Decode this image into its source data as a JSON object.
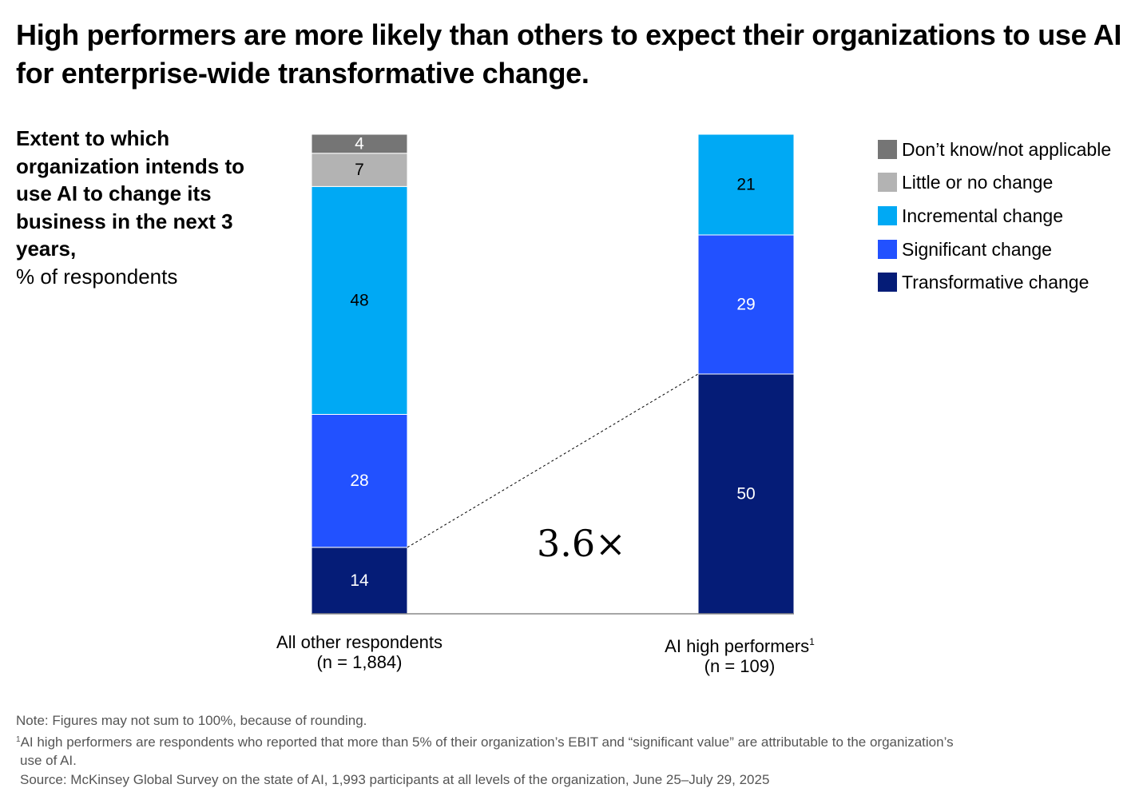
{
  "title": "High performers are more likely than others to expect their organizations to use AI for enterprise-wide transformative change.",
  "subtitle_bold": "Extent to which organization intends to use AI to change its business in the next 3 years,",
  "subtitle_unit": "% of respondents",
  "legend": [
    {
      "label": "Don’t know/not applicable",
      "color": "#757575"
    },
    {
      "label": "Little or no change",
      "color": "#B3B3B3"
    },
    {
      "label": "Incremental change",
      "color": "#00A9F4"
    },
    {
      "label": "Significant change",
      "color": "#2251FF"
    },
    {
      "label": "Transformative change",
      "color": "#051C77"
    }
  ],
  "categories": [
    {
      "label": "All other respondents",
      "superscript": "",
      "n": "(n = 1,884)"
    },
    {
      "label": "AI high performers",
      "superscript": "1",
      "n": "(n = 109)"
    }
  ],
  "multiplier": "3.6×",
  "notes": {
    "note": "Note: Figures may not sum to 100%, because of rounding.",
    "footnote_marker": "1",
    "footnote_line1": "AI high performers are respondents who reported that more than 5% of their organization’s EBIT and “significant value” are attributable to the organization’s",
    "footnote_line2": "use of AI.",
    "source": "Source: McKinsey Global Survey on the state of AI, 1,993 participants at all levels of the organization, June 25–July 29, 2025"
  },
  "chart_data": {
    "type": "bar",
    "stacked": true,
    "categories": [
      "All other respondents (n = 1,884)",
      "AI high performers (n = 109)"
    ],
    "series": [
      {
        "name": "Transformative change",
        "color": "#051C77",
        "label_color": "#FFFFFF",
        "values": [
          14,
          50
        ]
      },
      {
        "name": "Significant change",
        "color": "#2251FF",
        "label_color": "#FFFFFF",
        "values": [
          28,
          29
        ]
      },
      {
        "name": "Incremental change",
        "color": "#00A9F4",
        "label_color": "#000000",
        "values": [
          48,
          21
        ]
      },
      {
        "name": "Little or no change",
        "color": "#B3B3B3",
        "label_color": "#000000",
        "values": [
          7,
          null
        ]
      },
      {
        "name": "Don’t know/not applicable",
        "color": "#757575",
        "label_color": "#FFFFFF",
        "values": [
          4,
          null
        ]
      }
    ],
    "annotation": {
      "text": "3.6×",
      "compares": "Transformative change"
    },
    "ylim": [
      0,
      100
    ],
    "grid": false,
    "legend_position": "right"
  }
}
